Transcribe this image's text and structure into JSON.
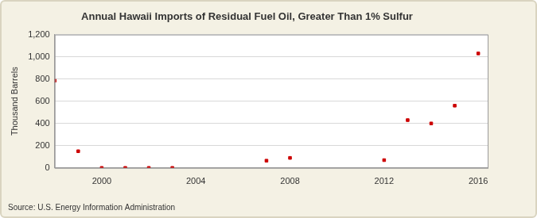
{
  "chart_data": {
    "type": "scatter",
    "title": "Annual Hawaii Imports of Residual Fuel Oil, Greater Than 1% Sulfur",
    "y_label": "Thousand Barrels",
    "source": "Source: U.S. Energy Information Administration",
    "x": [
      1998,
      1999,
      2000,
      2001,
      2002,
      2003,
      2007,
      2008,
      2012,
      2013,
      2014,
      2015,
      2016
    ],
    "values": [
      785,
      150,
      0,
      0,
      0,
      0,
      65,
      90,
      70,
      430,
      400,
      560,
      1030
    ],
    "color": "#cc0000",
    "marker": "square",
    "xlim": [
      1998,
      2016.4
    ],
    "xticks": [
      2000,
      2004,
      2008,
      2012,
      2016
    ],
    "ylim": [
      0,
      1200
    ],
    "yticks": [
      0,
      200,
      400,
      600,
      800,
      {
        "value": 1000,
        "label": "1,000"
      },
      {
        "value": 1200,
        "label": "1,200"
      }
    ],
    "grid": true
  }
}
